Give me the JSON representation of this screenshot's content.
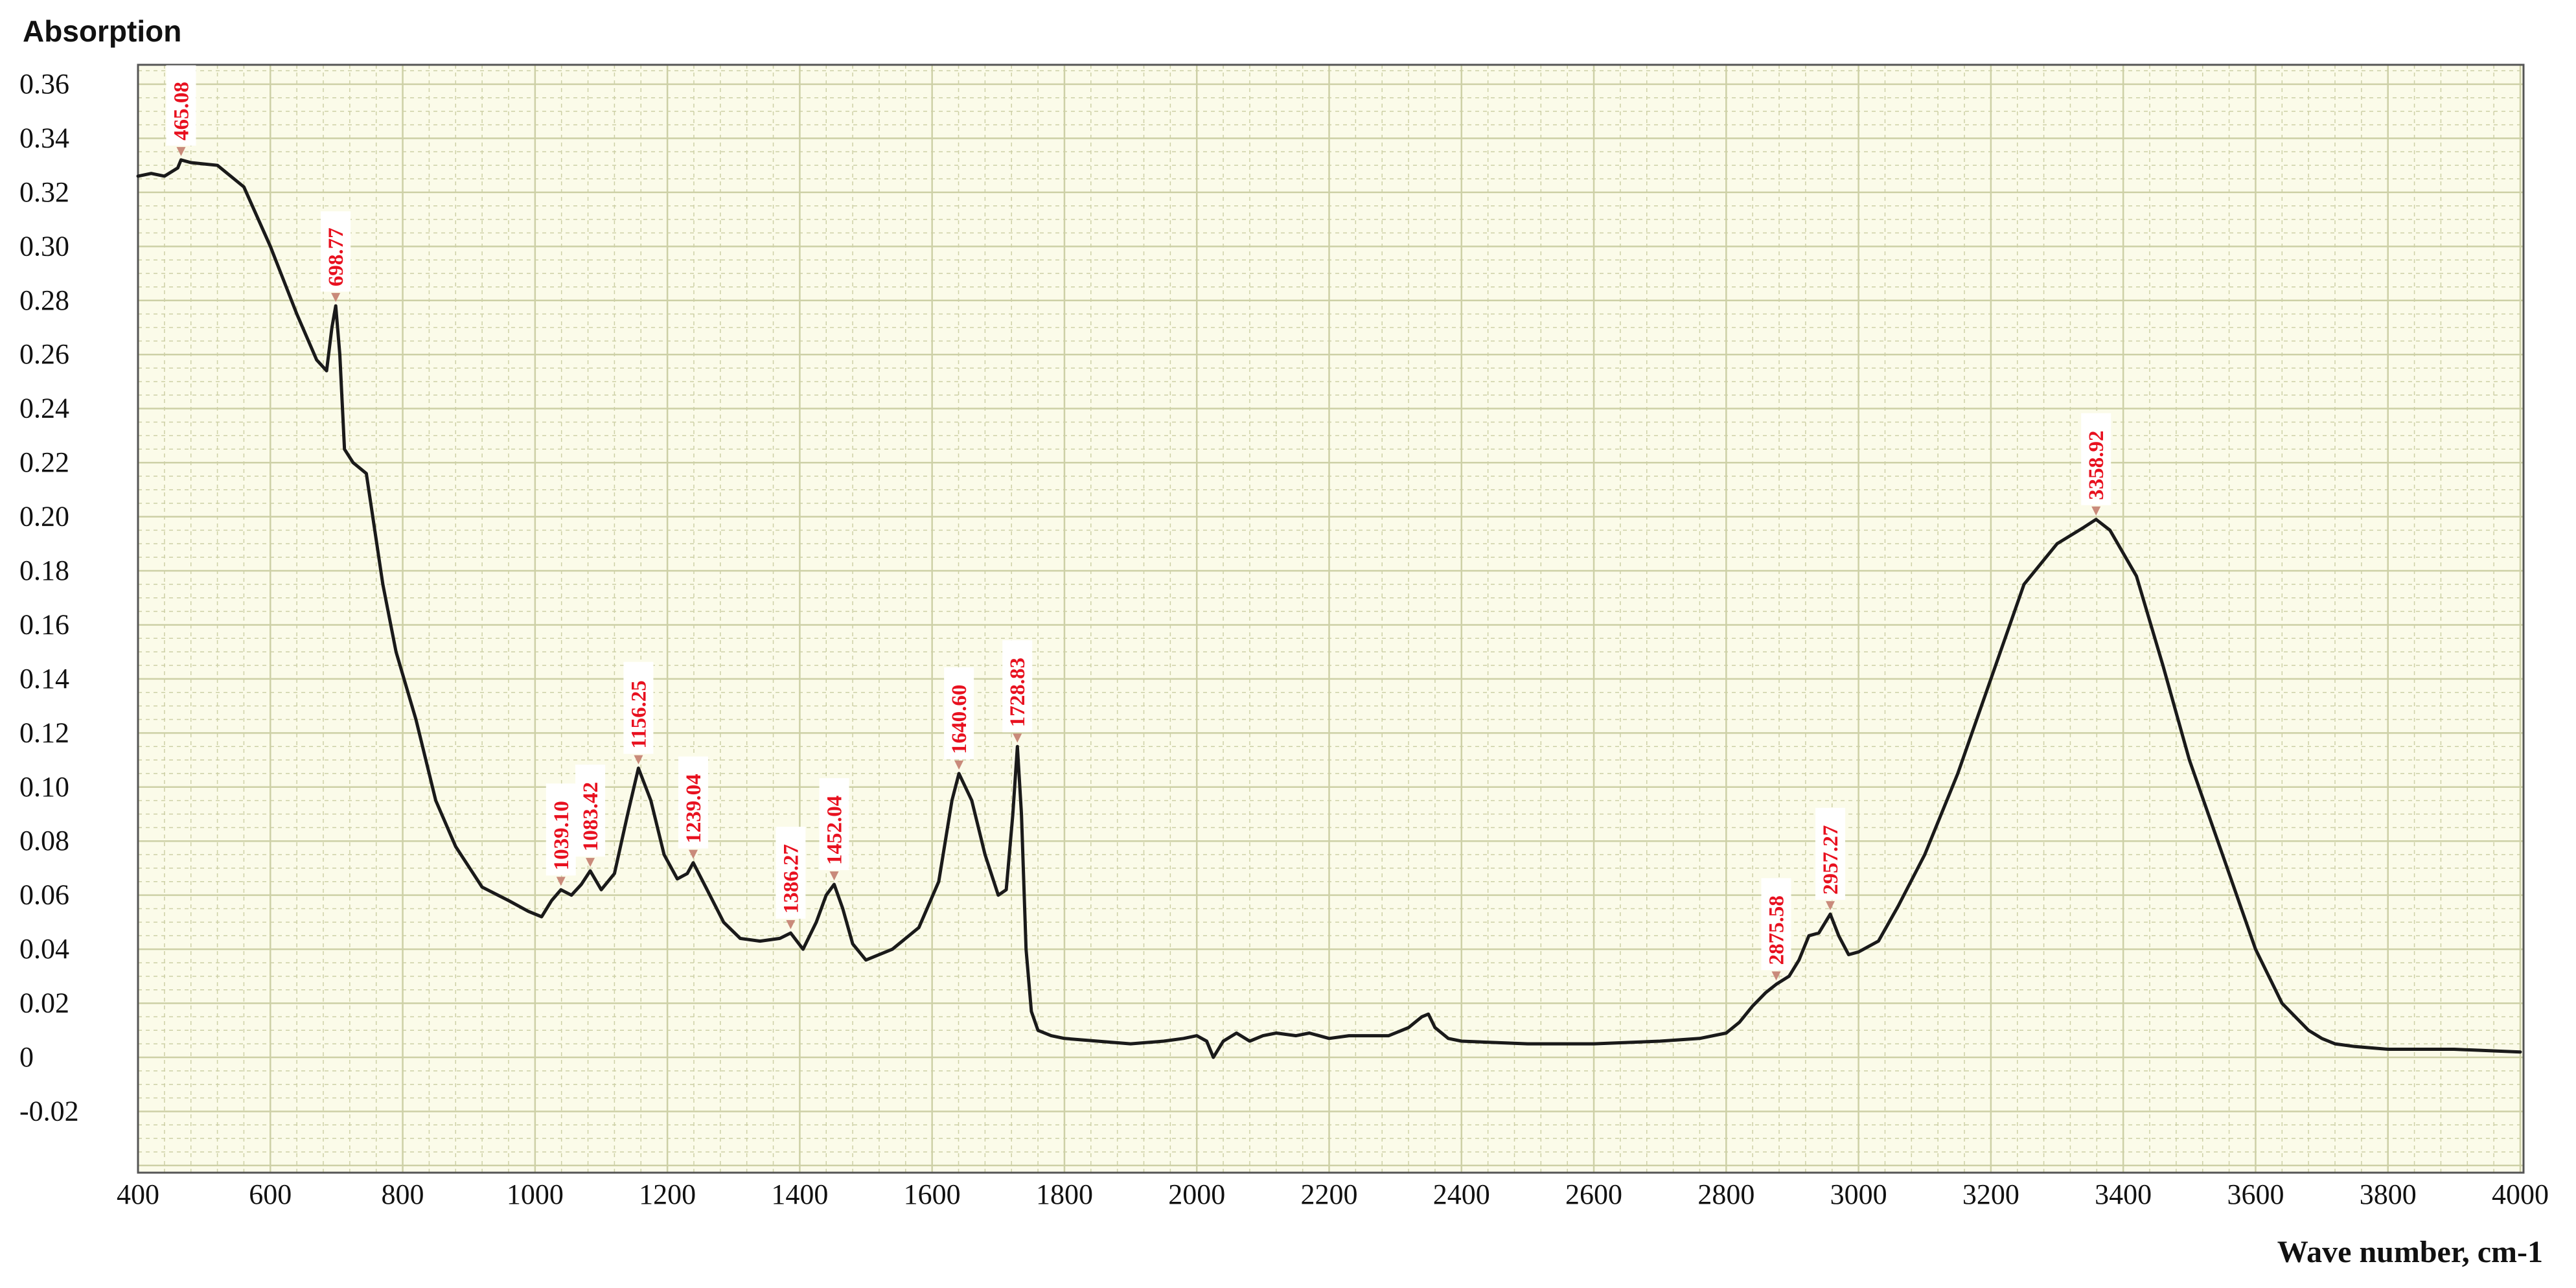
{
  "chart_data": {
    "type": "line",
    "title": "",
    "ylabel": "Absorption",
    "xlabel": "Wave number, cm-1",
    "xlim": [
      400,
      4000
    ],
    "ylim": [
      -0.04,
      0.37
    ],
    "grid": true,
    "xticks": [
      400,
      600,
      800,
      1000,
      1200,
      1400,
      1600,
      1800,
      2000,
      2200,
      2400,
      2600,
      2800,
      3000,
      3200,
      3400,
      3600,
      3800,
      4000
    ],
    "xtick_labels": [
      "400",
      "600",
      "800",
      "1000",
      "1200",
      "1400",
      "1600",
      "1800",
      "2000",
      "2200",
      "2400",
      "2600",
      "2800",
      "3000",
      "3200",
      "3400",
      "3600",
      "3800",
      "4000"
    ],
    "yticks": [
      -0.02,
      0,
      0.02,
      0.04,
      0.06,
      0.08,
      0.1,
      0.12,
      0.14,
      0.16,
      0.18,
      0.2,
      0.22,
      0.24,
      0.26,
      0.28,
      0.3,
      0.32,
      0.34,
      0.36
    ],
    "ytick_labels": [
      "-0.02",
      "0",
      "0.02",
      "0.04",
      "0.06",
      "0.08",
      "0.10",
      "0.12",
      "0.14",
      "0.16",
      "0.18",
      "0.20",
      "0.22",
      "0.24",
      "0.26",
      "0.28",
      "0.30",
      "0.32",
      "0.34",
      "0.36"
    ],
    "colors": {
      "line": "#1a1a1a",
      "grid": "#cdd0a6",
      "plot_bg": "#fbfbe9",
      "peak_label": "#e8101f",
      "peak_marker": "#c98a7a"
    },
    "series": [
      {
        "x": [
          400,
          420,
          440,
          460,
          465,
          480,
          520,
          560,
          600,
          640,
          670,
          685,
          693,
          698.77,
          705,
          712,
          725,
          745,
          770,
          790,
          820,
          850,
          880,
          920,
          960,
          990,
          1010,
          1025,
          1039.1,
          1055,
          1070,
          1083.42,
          1100,
          1120,
          1140,
          1156.25,
          1175,
          1195,
          1215,
          1230,
          1239.04,
          1260,
          1285,
          1310,
          1340,
          1370,
          1386.27,
          1405,
          1425,
          1440,
          1452.04,
          1465,
          1480,
          1500,
          1540,
          1580,
          1610,
          1630,
          1640.6,
          1660,
          1680,
          1700,
          1712,
          1722,
          1728.83,
          1735,
          1742,
          1750,
          1760,
          1780,
          1800,
          1850,
          1900,
          1950,
          1980,
          2000,
          2015,
          2025,
          2040,
          2060,
          2080,
          2100,
          2120,
          2150,
          2170,
          2200,
          2230,
          2260,
          2290,
          2320,
          2340,
          2350,
          2360,
          2380,
          2400,
          2500,
          2600,
          2700,
          2760,
          2800,
          2820,
          2840,
          2860,
          2875.58,
          2895,
          2910,
          2925,
          2940,
          2957.27,
          2970,
          2985,
          3000,
          3030,
          3060,
          3100,
          3150,
          3200,
          3250,
          3300,
          3340,
          3358.92,
          3380,
          3420,
          3460,
          3500,
          3550,
          3600,
          3640,
          3680,
          3700,
          3720,
          3750,
          3800,
          3900,
          4000
        ],
        "y": [
          0.326,
          0.327,
          0.326,
          0.329,
          0.332,
          0.331,
          0.33,
          0.322,
          0.3,
          0.275,
          0.258,
          0.254,
          0.27,
          0.278,
          0.26,
          0.225,
          0.22,
          0.216,
          0.175,
          0.15,
          0.125,
          0.095,
          0.078,
          0.063,
          0.058,
          0.054,
          0.052,
          0.058,
          0.062,
          0.06,
          0.064,
          0.069,
          0.062,
          0.068,
          0.09,
          0.107,
          0.095,
          0.075,
          0.066,
          0.068,
          0.072,
          0.062,
          0.05,
          0.044,
          0.043,
          0.044,
          0.046,
          0.04,
          0.05,
          0.06,
          0.064,
          0.055,
          0.042,
          0.036,
          0.04,
          0.048,
          0.065,
          0.095,
          0.105,
          0.095,
          0.075,
          0.06,
          0.062,
          0.09,
          0.115,
          0.09,
          0.04,
          0.017,
          0.01,
          0.008,
          0.007,
          0.006,
          0.005,
          0.006,
          0.007,
          0.008,
          0.006,
          0.0,
          0.006,
          0.009,
          0.006,
          0.008,
          0.009,
          0.008,
          0.009,
          0.007,
          0.008,
          0.008,
          0.008,
          0.011,
          0.015,
          0.016,
          0.011,
          0.007,
          0.006,
          0.005,
          0.005,
          0.006,
          0.007,
          0.009,
          0.013,
          0.019,
          0.024,
          0.027,
          0.03,
          0.036,
          0.045,
          0.046,
          0.053,
          0.045,
          0.038,
          0.039,
          0.043,
          0.056,
          0.075,
          0.105,
          0.14,
          0.175,
          0.19,
          0.196,
          0.199,
          0.195,
          0.178,
          0.145,
          0.11,
          0.075,
          0.04,
          0.02,
          0.01,
          0.007,
          0.005,
          0.004,
          0.003,
          0.003,
          0.002
        ]
      }
    ],
    "annotations": [
      {
        "text": "465.08",
        "x": 465.08,
        "y": 0.332
      },
      {
        "text": "698.77",
        "x": 698.77,
        "y": 0.278
      },
      {
        "text": "1039.10",
        "x": 1039.1,
        "y": 0.062
      },
      {
        "text": "1083.42",
        "x": 1083.42,
        "y": 0.069
      },
      {
        "text": "1156.25",
        "x": 1156.25,
        "y": 0.107
      },
      {
        "text": "1239.04",
        "x": 1239.04,
        "y": 0.072
      },
      {
        "text": "1386.27",
        "x": 1386.27,
        "y": 0.046
      },
      {
        "text": "1452.04",
        "x": 1452.04,
        "y": 0.064
      },
      {
        "text": "1640.60",
        "x": 1640.6,
        "y": 0.105
      },
      {
        "text": "1728.83",
        "x": 1728.83,
        "y": 0.115
      },
      {
        "text": "2875.58",
        "x": 2875.58,
        "y": 0.027
      },
      {
        "text": "2957.27",
        "x": 2957.27,
        "y": 0.053
      },
      {
        "text": "3358.92",
        "x": 3358.92,
        "y": 0.199
      }
    ]
  }
}
